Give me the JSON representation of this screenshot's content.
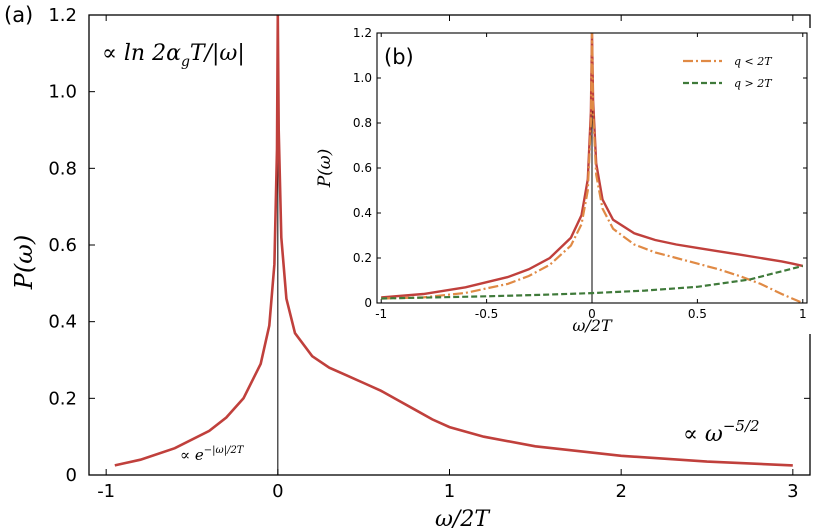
{
  "panel_labels": {
    "main": "(a)",
    "inset": "(b)"
  },
  "annotations": {
    "log_form": "∝ ln 2α",
    "log_sub": "g",
    "log_tail": "T/|ω|",
    "exp_form": "∝ e",
    "exp_sup": "−|ω|/2T",
    "power_form": "∝ ω",
    "power_sup": "−5/2"
  },
  "colors": {
    "main": "#c0403c",
    "q_less": "#e08a45",
    "q_greater": "#3f7a3a",
    "frame": "#000000"
  },
  "chart_data": [
    {
      "type": "line",
      "panel": "(a)",
      "xlabel": "ω/2T",
      "ylabel": "P(ω)",
      "xlim": [
        -1.1,
        3.1
      ],
      "ylim": [
        0,
        1.2
      ],
      "xticks": [
        -1,
        0,
        1,
        2,
        3
      ],
      "xtick_labels": [
        "-1",
        "0",
        "1",
        "2",
        "3"
      ],
      "yticks": [
        0,
        0.2,
        0.4,
        0.6,
        0.8,
        1.0,
        1.2
      ],
      "ytick_labels": [
        "0",
        "0.2",
        "0.4",
        "0.6",
        "0.8",
        "1.0",
        "1.2"
      ],
      "vline_x": 0,
      "series": [
        {
          "color": "#c0403c",
          "style": "solid",
          "x": [
            -0.95,
            -0.8,
            -0.6,
            -0.4,
            -0.3,
            -0.2,
            -0.1,
            -0.05,
            -0.02,
            -0.005,
            0,
            0.005,
            0.02,
            0.05,
            0.1,
            0.2,
            0.3,
            0.4,
            0.5,
            0.6,
            0.7,
            0.8,
            0.9,
            1.0,
            1.2,
            1.5,
            2.0,
            2.5,
            3.0
          ],
          "y": [
            0.025,
            0.04,
            0.07,
            0.115,
            0.15,
            0.2,
            0.29,
            0.39,
            0.55,
            0.85,
            1.2,
            0.9,
            0.62,
            0.46,
            0.37,
            0.31,
            0.28,
            0.26,
            0.24,
            0.22,
            0.195,
            0.17,
            0.145,
            0.125,
            0.1,
            0.075,
            0.05,
            0.035,
            0.025
          ]
        }
      ]
    },
    {
      "type": "line",
      "panel": "(b)",
      "xlabel": "ω/2T",
      "ylabel": "P(ω)",
      "xlim": [
        -1.02,
        1.02
      ],
      "ylim": [
        0,
        1.2
      ],
      "xticks": [
        -1,
        -0.5,
        0,
        0.5,
        1
      ],
      "xtick_labels": [
        "-1",
        "-0.5",
        "0",
        "0.5",
        "1"
      ],
      "yticks": [
        0,
        0.2,
        0.4,
        0.6,
        0.8,
        1.0,
        1.2
      ],
      "ytick_labels": [
        "0",
        "0.2",
        "0.4",
        "0.6",
        "0.8",
        "1.0",
        "1.2"
      ],
      "vline_x": 0,
      "legend_position": "top-right",
      "series": [
        {
          "color": "#c0403c",
          "style": "solid",
          "x": [
            -1,
            -0.8,
            -0.6,
            -0.4,
            -0.3,
            -0.2,
            -0.1,
            -0.05,
            -0.02,
            -0.005,
            0,
            0.005,
            0.02,
            0.05,
            0.1,
            0.2,
            0.3,
            0.4,
            0.5,
            0.6,
            0.7,
            0.8,
            0.9,
            0.95,
            1.0
          ],
          "y": [
            0.025,
            0.04,
            0.07,
            0.115,
            0.15,
            0.2,
            0.29,
            0.39,
            0.55,
            0.85,
            1.2,
            0.9,
            0.62,
            0.46,
            0.37,
            0.31,
            0.28,
            0.26,
            0.245,
            0.23,
            0.215,
            0.2,
            0.185,
            0.175,
            0.165
          ]
        },
        {
          "name": "q < 2T",
          "color": "#e08a45",
          "style": "dashdot",
          "x": [
            -1,
            -0.8,
            -0.6,
            -0.4,
            -0.3,
            -0.2,
            -0.1,
            -0.05,
            -0.02,
            -0.005,
            0,
            0.005,
            0.02,
            0.05,
            0.1,
            0.2,
            0.3,
            0.4,
            0.5,
            0.6,
            0.7,
            0.8,
            0.9,
            1.0
          ],
          "y": [
            0.02,
            0.025,
            0.045,
            0.085,
            0.12,
            0.17,
            0.255,
            0.35,
            0.5,
            0.8,
            1.2,
            0.85,
            0.57,
            0.42,
            0.33,
            0.26,
            0.225,
            0.2,
            0.175,
            0.15,
            0.12,
            0.085,
            0.04,
            0.0
          ]
        },
        {
          "name": "q > 2T",
          "color": "#3f7a3a",
          "style": "dashed",
          "x": [
            -1,
            -0.75,
            -0.5,
            -0.25,
            0,
            0.25,
            0.5,
            0.75,
            1.0
          ],
          "y": [
            0.02,
            0.025,
            0.03,
            0.036,
            0.044,
            0.055,
            0.072,
            0.105,
            0.165
          ]
        }
      ]
    }
  ]
}
